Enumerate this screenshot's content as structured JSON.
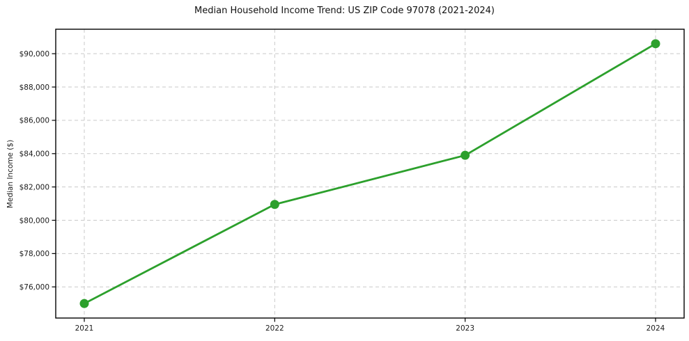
{
  "title": "Median Household Income Trend: US ZIP Code 97078 (2021-2024)",
  "chart_data": {
    "type": "line",
    "title": "Median Household Income Trend: US ZIP Code 97078 (2021-2024)",
    "categories": [
      "2021",
      "2022",
      "2023",
      "2024"
    ],
    "series": [
      {
        "name": "Median Household Income",
        "values": [
          75000,
          80950,
          83900,
          90600
        ],
        "color": "#2ca02c",
        "marker": "circle"
      }
    ],
    "xlabel": "",
    "ylabel": "Median Income ($)",
    "ylim": [
      74130,
      91470
    ],
    "yticks": [
      76000,
      78000,
      80000,
      82000,
      84000,
      86000,
      88000,
      90000
    ],
    "ytick_labels": [
      "$76,000",
      "$78,000",
      "$80,000",
      "$82,000",
      "$84,000",
      "$86,000",
      "$88,000",
      "$90,000"
    ],
    "grid": true,
    "grid_style": "dashed",
    "grid_color": "#c9c9c9",
    "frame_color": "#000000",
    "legend": "none"
  }
}
